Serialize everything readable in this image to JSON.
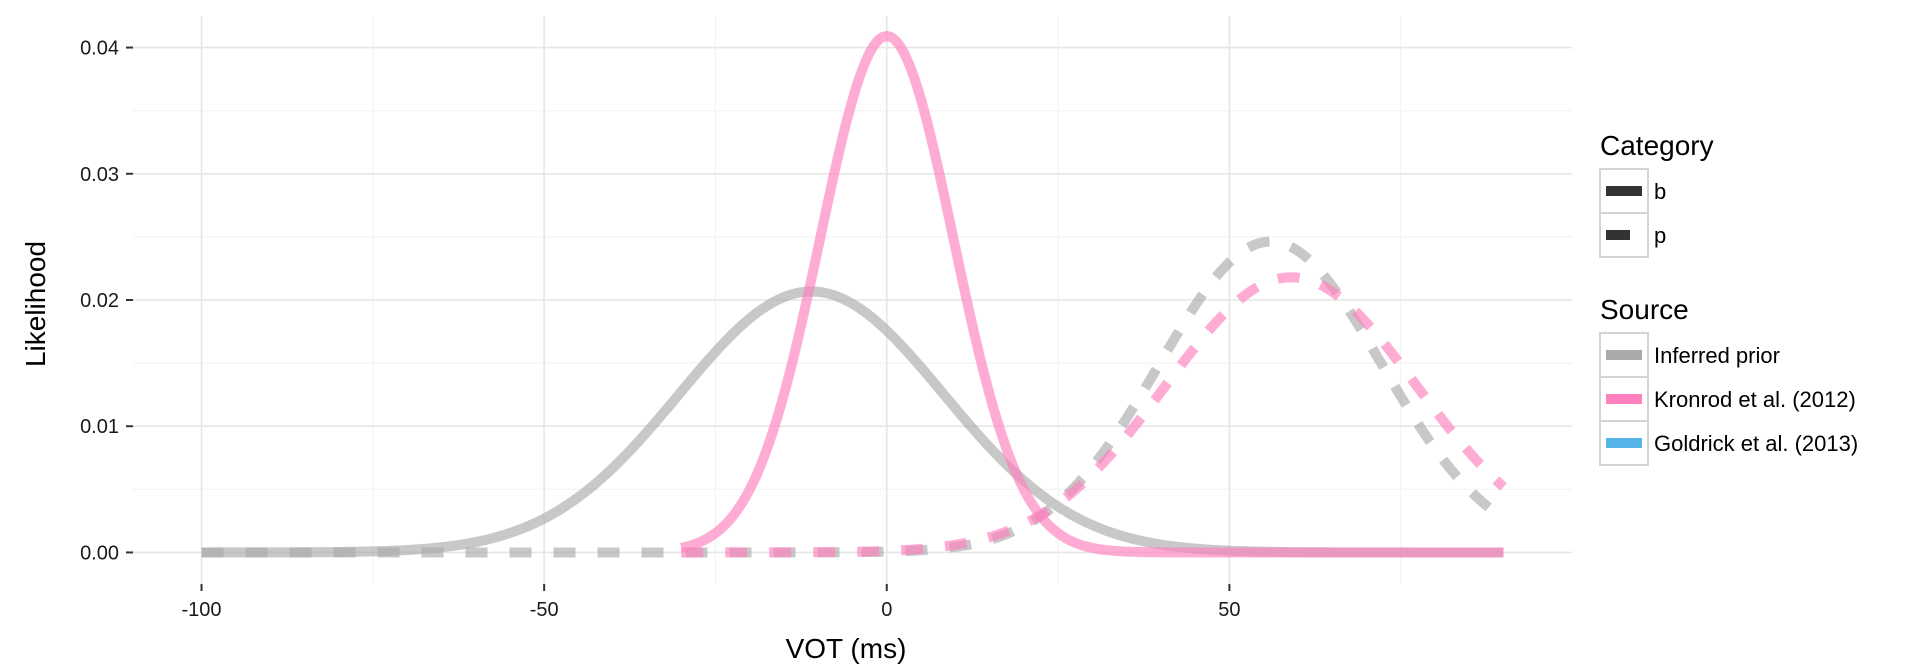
{
  "chart_data": {
    "type": "line",
    "xlabel": "VOT (ms)",
    "ylabel": "Likelihood",
    "xlim": [
      -110,
      100
    ],
    "ylim": [
      -0.0025,
      0.0425
    ],
    "x_ticks": [
      -100,
      -50,
      0,
      50
    ],
    "x_tick_labels": [
      "-100",
      "-50",
      "0",
      "50"
    ],
    "y_ticks": [
      0.0,
      0.01,
      0.02,
      0.03,
      0.04
    ],
    "y_tick_labels": [
      "0.00",
      "0.01",
      "0.02",
      "0.03",
      "0.04"
    ],
    "grid": true,
    "legend_placement": "right",
    "legends": [
      {
        "title": "Category",
        "entries": [
          {
            "label": "b",
            "linetype": "solid"
          },
          {
            "label": "p",
            "linetype": "dashed"
          }
        ]
      },
      {
        "title": "Source",
        "entries": [
          {
            "label": "Inferred prior",
            "color": "#aaaaaa"
          },
          {
            "label": "Kronrod et al. (2012)",
            "color": "#ff7fbf"
          },
          {
            "label": "Goldrick et al. (2013)",
            "color": "#56b4e9"
          }
        ]
      }
    ],
    "series": [
      {
        "source": "Inferred prior",
        "category": "b",
        "color": "#aaaaaa",
        "linetype": "solid",
        "mean": -11,
        "sd": 19.3,
        "x_range": [
          -100,
          90
        ]
      },
      {
        "source": "Inferred prior",
        "category": "p",
        "color": "#aaaaaa",
        "linetype": "dashed",
        "mean": 56,
        "sd": 16.2,
        "x_range": [
          -100,
          90
        ]
      },
      {
        "source": "Kronrod et al. (2012)",
        "category": "b",
        "color": "#ff7fbf",
        "linetype": "solid",
        "mean": 0,
        "sd": 9.75,
        "x_range": [
          -30,
          90
        ]
      },
      {
        "source": "Kronrod et al. (2012)",
        "category": "p",
        "color": "#ff7fbf",
        "linetype": "dashed",
        "mean": 59,
        "sd": 18.3,
        "x_range": [
          -30,
          90
        ]
      }
    ]
  }
}
